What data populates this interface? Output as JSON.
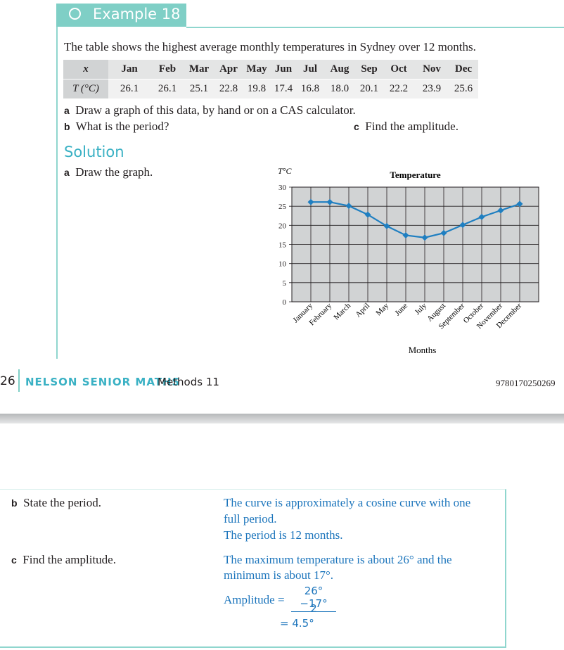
{
  "example": {
    "title": "Example 18",
    "intro": "The table shows the highest average monthly temperatures in Sydney over 12 months.",
    "table": {
      "x_label": "x",
      "t_label": "T (°C)",
      "months": [
        "Jan",
        "Feb",
        "Mar",
        "Apr",
        "May",
        "Jun",
        "Jul",
        "Aug",
        "Sep",
        "Oct",
        "Nov",
        "Dec"
      ],
      "temps": [
        "26.1",
        "26.1",
        "25.1",
        "22.8",
        "19.8",
        "17.4",
        "16.8",
        "18.0",
        "20.1",
        "22.2",
        "23.9",
        "25.6"
      ]
    },
    "questions": {
      "a_letter": "a",
      "a_text": "Draw a graph of this data, by hand or on a CAS calculator.",
      "b_letter": "b",
      "b_text": "What is the period?",
      "c_letter": "c",
      "c_text": "Find the amplitude."
    },
    "solution_title": "Solution",
    "solution_a_letter": "a",
    "solution_a_text": "Draw the graph."
  },
  "chart_data": {
    "type": "line",
    "title": "Temperature",
    "ylabel": "T°C",
    "xlabel": "Months",
    "ylim": [
      0,
      30
    ],
    "yticks": [
      0,
      5,
      10,
      15,
      20,
      25,
      30
    ],
    "categories": [
      "January",
      "February",
      "March",
      "April",
      "May",
      "June",
      "July",
      "August",
      "September",
      "October",
      "November",
      "December"
    ],
    "values": [
      26.1,
      26.1,
      25.1,
      22.8,
      19.8,
      17.4,
      16.8,
      18.0,
      20.1,
      22.2,
      23.9,
      25.6
    ],
    "grid": true,
    "line_color": "#1f7fc1"
  },
  "footer": {
    "page": "26",
    "brand": "NELSON SENIOR MATHS",
    "book": "Methods 11",
    "isbn": "9780170250269"
  },
  "solution_cont": {
    "b_letter": "b",
    "b_label": "State the period.",
    "b_ans1": "The curve is approximately a cosine curve with one",
    "b_ans2": "full period.",
    "b_ans3": "The period is 12 months.",
    "c_letter": "c",
    "c_label": "Find the amplitude.",
    "c_ans1": "The maximum temperature is about 26° and the",
    "c_ans2": "minimum is about 17°.",
    "c_amp_label": "Amplitude =",
    "c_numerator": "26°−17°",
    "c_denominator": "2",
    "c_result": "= 4.5°"
  },
  "colors": {
    "accent": "#7fcfc6",
    "solution_blue": "#1c75bc",
    "brand_blue": "#3ab1c4"
  }
}
